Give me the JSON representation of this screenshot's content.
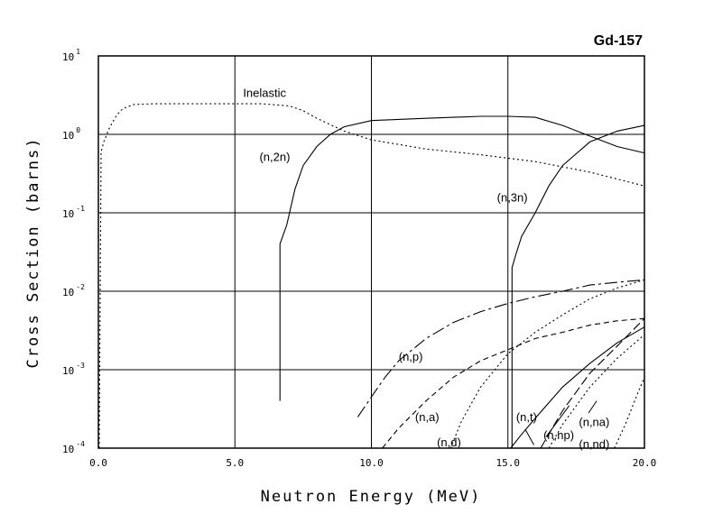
{
  "chart_data": {
    "type": "line",
    "title": "Gd-157",
    "xlabel": "Neutron Energy (MeV)",
    "ylabel": "Cross Section (barns)",
    "xlim": [
      0,
      20
    ],
    "ylim": [
      0.0001,
      10
    ],
    "yscale": "log",
    "grid": true,
    "x_ticks": [
      0,
      5,
      10,
      15,
      20
    ],
    "x_tick_labels": [
      "0.0",
      "5.0",
      "10.0",
      "15.0",
      "20.0"
    ],
    "y_ticks": [
      0.0001,
      0.001,
      0.01,
      0.1,
      1,
      10
    ],
    "y_tick_labels": [
      {
        "base": "10",
        "exp": "-4"
      },
      {
        "base": "10",
        "exp": "-3"
      },
      {
        "base": "10",
        "exp": "-2"
      },
      {
        "base": "10",
        "exp": "-1"
      },
      {
        "base": "10",
        "exp": "0"
      },
      {
        "base": "10",
        "exp": "1"
      }
    ],
    "series": [
      {
        "name": "Inelastic",
        "dash": "2,3",
        "label_pos": [
          5.3,
          3.0
        ],
        "x": [
          0.03,
          0.1,
          0.2,
          0.4,
          0.6,
          0.8,
          1.0,
          1.3,
          2.0,
          4.0,
          6.0,
          7.0,
          7.5,
          8.0,
          9.0,
          10.0,
          12.0,
          14.0,
          16.0,
          18.0,
          20.0
        ],
        "y": [
          0.0001,
          0.6,
          0.8,
          1.2,
          1.6,
          2.0,
          2.2,
          2.4,
          2.45,
          2.45,
          2.45,
          2.3,
          2.0,
          1.6,
          1.1,
          0.85,
          0.65,
          0.55,
          0.45,
          0.33,
          0.22
        ]
      },
      {
        "name": "(n,2n)",
        "dash": "",
        "label_pos": [
          5.9,
          0.46
        ],
        "x": [
          6.65,
          6.65,
          6.9,
          7.0,
          7.2,
          7.5,
          8.0,
          8.5,
          9.0,
          10.0,
          12.0,
          14.0,
          15.0,
          16.0,
          17.0,
          18.0,
          19.0,
          20.0
        ],
        "y": [
          0.0004,
          0.04,
          0.07,
          0.1,
          0.2,
          0.4,
          0.7,
          1.0,
          1.25,
          1.5,
          1.6,
          1.7,
          1.7,
          1.65,
          1.3,
          0.95,
          0.7,
          0.58
        ]
      },
      {
        "name": "(n,3n)",
        "dash": "",
        "label_pos": [
          14.6,
          0.14
        ],
        "x": [
          15.15,
          15.15,
          15.3,
          15.5,
          16.0,
          16.5,
          17.0,
          18.0,
          19.0,
          20.0
        ],
        "y": [
          0.0001,
          0.02,
          0.03,
          0.05,
          0.1,
          0.22,
          0.4,
          0.8,
          1.1,
          1.3
        ]
      },
      {
        "name": "(n,p)",
        "dash": "14,4,3,4",
        "label_pos": [
          11.0,
          0.0013
        ],
        "x": [
          9.5,
          10.0,
          10.5,
          11.0,
          12.0,
          13.0,
          14.0,
          15.0,
          16.0,
          17.0,
          18.0,
          19.0,
          20.0
        ],
        "y": [
          0.00025,
          0.00045,
          0.0008,
          0.0013,
          0.0025,
          0.004,
          0.0055,
          0.007,
          0.0085,
          0.01,
          0.012,
          0.013,
          0.014
        ]
      },
      {
        "name": "(n,a)",
        "dash": "6,4",
        "label_pos": [
          11.6,
          0.00022
        ],
        "x": [
          10.4,
          11.0,
          12.0,
          13.0,
          14.0,
          15.0,
          16.0,
          17.0,
          18.0,
          19.0,
          20.0
        ],
        "y": [
          0.0001,
          0.00018,
          0.0004,
          0.0008,
          0.0013,
          0.0018,
          0.0025,
          0.003,
          0.0037,
          0.0042,
          0.0045
        ]
      },
      {
        "name": "(n,d)",
        "dash": "2,3",
        "label_pos": [
          12.4,
          0.000105
        ],
        "x": [
          12.9,
          13.3,
          14.0,
          15.0,
          16.0,
          17.0,
          18.0,
          19.0,
          20.0
        ],
        "y": [
          0.0001,
          0.00022,
          0.0006,
          0.0016,
          0.003,
          0.005,
          0.008,
          0.011,
          0.014
        ]
      },
      {
        "name": "(n,t)",
        "dash": "",
        "label_pos": [
          15.3,
          0.00022
        ],
        "x": [
          15.1,
          15.5,
          16.0,
          16.5,
          17.0,
          18.0,
          19.0,
          20.0
        ],
        "y": [
          0.0001,
          0.00015,
          0.00024,
          0.00038,
          0.0006,
          0.0012,
          0.0022,
          0.0035
        ]
      },
      {
        "name": "(n,na)",
        "dash": "10,4",
        "label_pos": [
          17.6,
          0.00019
        ],
        "x": [
          16.2,
          17.0,
          18.0,
          19.0,
          20.0
        ],
        "y": [
          0.0001,
          0.0003,
          0.0009,
          0.002,
          0.0045
        ]
      },
      {
        "name": "(n,np)",
        "dash": "2,3",
        "label_pos": [
          16.3,
          0.00013
        ],
        "x": [
          16.5,
          17.0,
          18.0,
          19.0,
          20.0
        ],
        "y": [
          0.0001,
          0.0002,
          0.0006,
          0.0014,
          0.0028
        ]
      },
      {
        "name": "(n,nd)",
        "dash": "2,3",
        "label_pos": [
          17.6,
          0.0001
        ],
        "x": [
          18.9,
          19.3,
          19.7,
          20.0
        ],
        "y": [
          0.0001,
          0.0002,
          0.00045,
          0.0008
        ]
      }
    ]
  }
}
